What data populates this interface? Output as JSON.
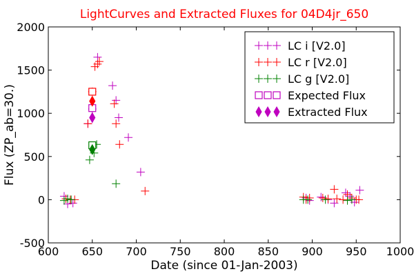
{
  "chart_data": {
    "type": "scatter",
    "title": "LightCurves and Extracted Fluxes for 04D4jr_650",
    "xlabel": "Date (since 01-Jan-2003)",
    "ylabel": "Flux (ZP_ab=30.)",
    "xlim": [
      600,
      1000
    ],
    "ylim": [
      -500,
      2000
    ],
    "x_ticks": [
      "600",
      "650",
      "700",
      "750",
      "800",
      "850",
      "900",
      "950",
      "1000"
    ],
    "y_ticks": [
      "-500",
      "0",
      "500",
      "1000",
      "1500",
      "2000"
    ],
    "grid": false,
    "legend_position": "top-right",
    "colors": {
      "title": "#ff0000",
      "i": "#bf00bf",
      "r": "#ff0000",
      "g": "#008000"
    },
    "series": [
      {
        "name": "LC i [V2.0]",
        "marker": "plus",
        "color": "#bf00bf",
        "points": [
          [
            618,
            40
          ],
          [
            622,
            -50
          ],
          [
            628,
            -40
          ],
          [
            645,
            880
          ],
          [
            650,
            1050
          ],
          [
            656,
            1650
          ],
          [
            673,
            1320
          ],
          [
            677,
            1150
          ],
          [
            680,
            950
          ],
          [
            691,
            720
          ],
          [
            705,
            320
          ],
          [
            893,
            20
          ],
          [
            897,
            -10
          ],
          [
            910,
            30
          ],
          [
            918,
            0
          ],
          [
            925,
            -40
          ],
          [
            938,
            80
          ],
          [
            943,
            40
          ],
          [
            948,
            -30
          ],
          [
            954,
            110
          ]
        ]
      },
      {
        "name": "LC r [V2.0]",
        "marker": "plus",
        "color": "#ff0000",
        "points": [
          [
            620,
            10
          ],
          [
            625,
            0
          ],
          [
            630,
            0
          ],
          [
            645,
            880
          ],
          [
            650,
            1250
          ],
          [
            653,
            1540
          ],
          [
            656,
            1570
          ],
          [
            658,
            1600
          ],
          [
            675,
            1110
          ],
          [
            677,
            880
          ],
          [
            681,
            640
          ],
          [
            710,
            100
          ],
          [
            890,
            30
          ],
          [
            893,
            0
          ],
          [
            897,
            20
          ],
          [
            912,
            20
          ],
          [
            918,
            10
          ],
          [
            925,
            120
          ],
          [
            928,
            10
          ],
          [
            935,
            0
          ],
          [
            940,
            60
          ],
          [
            945,
            20
          ],
          [
            950,
            0
          ],
          [
            953,
            0
          ]
        ]
      },
      {
        "name": "LC g [V2.0]",
        "marker": "plus",
        "color": "#008000",
        "points": [
          [
            618,
            -10
          ],
          [
            622,
            10
          ],
          [
            626,
            0
          ],
          [
            647,
            460
          ],
          [
            652,
            540
          ],
          [
            655,
            640
          ],
          [
            677,
            185
          ],
          [
            890,
            0
          ],
          [
            895,
            0
          ],
          [
            915,
            0
          ],
          [
            940,
            -10
          ],
          [
            945,
            0
          ]
        ]
      },
      {
        "name": "Expected Flux",
        "marker": "square",
        "color": "#bf00bf",
        "points": [
          [
            650,
            1250,
            "#ff0000"
          ],
          [
            650,
            1060,
            "#bf00bf"
          ],
          [
            650,
            630,
            "#008000"
          ]
        ]
      },
      {
        "name": "Extracted Flux",
        "marker": "diamond",
        "color": "#bf00bf",
        "points": [
          [
            650,
            1140,
            "#ff0000"
          ],
          [
            650,
            950,
            "#bf00bf"
          ],
          [
            650,
            580,
            "#008000"
          ]
        ]
      }
    ]
  }
}
